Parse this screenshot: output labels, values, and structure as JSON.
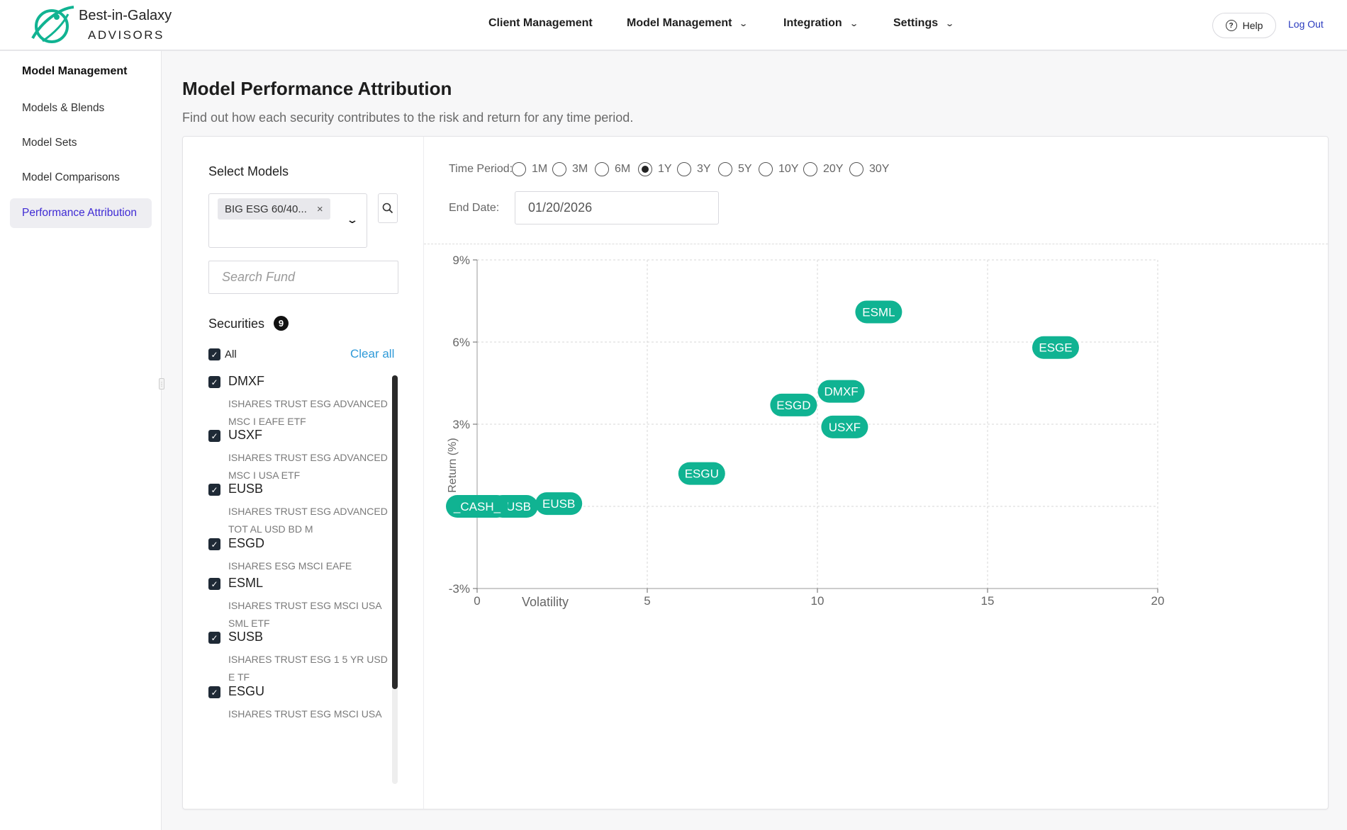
{
  "header": {
    "brand_line1": "Best-in-Galaxy",
    "brand_line2": "ADVISORS",
    "nav": [
      {
        "label": "Client Management",
        "has_dropdown": false
      },
      {
        "label": "Model Management",
        "has_dropdown": true
      },
      {
        "label": "Integration",
        "has_dropdown": true
      },
      {
        "label": "Settings",
        "has_dropdown": true
      }
    ],
    "help_label": "Help",
    "logout_label": "Log Out"
  },
  "sidebar": {
    "title": "Model Management",
    "items": [
      {
        "label": "Models & Blends",
        "active": false
      },
      {
        "label": "Model Sets",
        "active": false
      },
      {
        "label": "Model Comparisons",
        "active": false
      },
      {
        "label": "Performance Attribution",
        "active": true
      }
    ]
  },
  "page": {
    "title": "Model Performance Attribution",
    "subtitle": "Find out how each security contributes to the risk and return for any time period."
  },
  "filters": {
    "select_models_label": "Select Models",
    "selected_model": "BIG ESG 60/40...",
    "search_fund_placeholder": "Search Fund",
    "securities_label": "Securities",
    "securities_count": "9",
    "all_label": "All",
    "clear_all_label": "Clear all",
    "securities": [
      {
        "ticker": "DMXF",
        "name": "ISHARES TRUST ESG ADVANCED MSC I EAFE ETF",
        "checked": true
      },
      {
        "ticker": "USXF",
        "name": "ISHARES TRUST ESG ADVANCED MSC I USA ETF",
        "checked": true
      },
      {
        "ticker": "EUSB",
        "name": "ISHARES TRUST ESG ADVANCED TOT AL USD BD M",
        "checked": true
      },
      {
        "ticker": "ESGD",
        "name": "ISHARES ESG MSCI EAFE",
        "checked": true
      },
      {
        "ticker": "ESML",
        "name": "ISHARES TRUST ESG MSCI USA SML ETF",
        "checked": true
      },
      {
        "ticker": "SUSB",
        "name": "ISHARES TRUST ESG 1 5 YR USD E TF",
        "checked": true
      },
      {
        "ticker": "ESGU",
        "name": "ISHARES TRUST ESG MSCI USA",
        "checked": true
      }
    ]
  },
  "time_period": {
    "label": "Time Period:",
    "options": [
      "1M",
      "3M",
      "6M",
      "1Y",
      "3Y",
      "5Y",
      "10Y",
      "20Y",
      "30Y"
    ],
    "selected": "1Y"
  },
  "end_date": {
    "label": "End Date:",
    "value": "01/20/2026"
  },
  "chart_data": {
    "type": "scatter",
    "xlabel": "Volatility",
    "ylabel": "Return (%)",
    "xlim": [
      0,
      20
    ],
    "ylim": [
      -3,
      9
    ],
    "x_ticks": [
      "0",
      "5",
      "10",
      "15",
      "20"
    ],
    "y_ticks": [
      "9%",
      "6%",
      "3%",
      "-3%"
    ],
    "grid": true,
    "marker_color": "#10b392",
    "points": [
      {
        "label": "ESML",
        "x": 11.8,
        "y": 7.1
      },
      {
        "label": "ESGE",
        "x": 17.0,
        "y": 5.8
      },
      {
        "label": "DMXF",
        "x": 10.7,
        "y": 4.2
      },
      {
        "label": "ESGD",
        "x": 9.3,
        "y": 3.7
      },
      {
        "label": "USXF",
        "x": 10.8,
        "y": 2.9
      },
      {
        "label": "ESGU",
        "x": 6.6,
        "y": 1.2
      },
      {
        "label": "EUSB",
        "x": 2.4,
        "y": 0.1
      },
      {
        "label": "SUSB",
        "x": 1.1,
        "y": 0.0
      },
      {
        "label": "_CASH_",
        "x": 0.0,
        "y": 0.0
      }
    ]
  }
}
